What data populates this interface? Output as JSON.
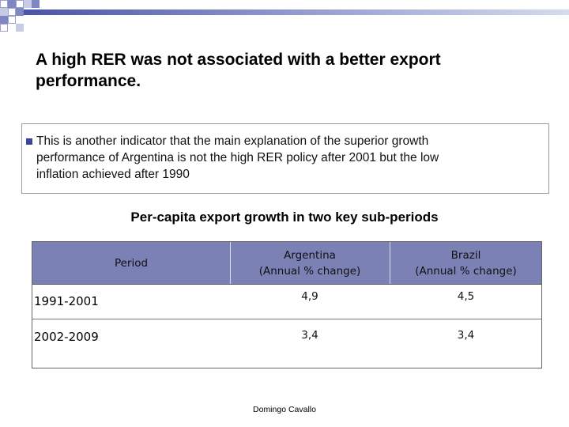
{
  "slide": {
    "title_line1": "A high RER was not associated with a better export",
    "title_line2": "performance.",
    "bullet": {
      "line1": "This is another indicator that the main explanation of the superior growth",
      "line2": "performance of Argentina is not the high RER policy after 2001 but the low",
      "line3": "inflation achieved after 1990"
    },
    "subtitle": "Per-capita export growth in two key sub-periods",
    "footer": "Domingo Cavallo"
  },
  "table": {
    "headers": {
      "period": "Period",
      "argentina_line1": "Argentina",
      "argentina_line2": "(Annual % change)",
      "brazil_line1": "Brazil",
      "brazil_line2": "(Annual % change)"
    },
    "rows": [
      {
        "period": "1991-2001",
        "argentina": "4,9",
        "brazil": "4,5"
      },
      {
        "period": "2002-2009",
        "argentina": "3,4",
        "brazil": "3,4"
      }
    ]
  },
  "colors": {
    "header_fill": "#7b80b5",
    "bullet": "#3b4498",
    "accent_bar": "#4a53a8"
  }
}
